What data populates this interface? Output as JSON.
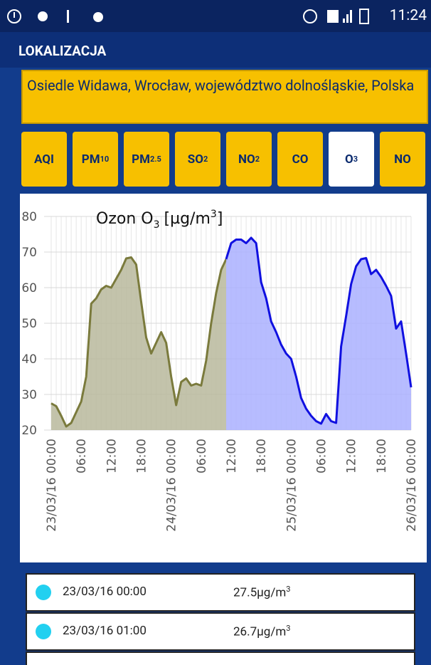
{
  "status_bar": {
    "time": "11:24"
  },
  "header": {
    "title": "LOKALIZACJA"
  },
  "location": "Osiedle Widawa, Wrocław, województwo dolnośląskie, Polska",
  "tabs": [
    {
      "label": "AQI"
    },
    {
      "label": "PM",
      "sub": "10"
    },
    {
      "label": "PM",
      "sub": "2.5"
    },
    {
      "label": "SO",
      "sub": "2"
    },
    {
      "label": "NO",
      "sub": "2"
    },
    {
      "label": "CO"
    },
    {
      "label": "O",
      "sub": "3",
      "selected": true
    },
    {
      "label": "NO"
    }
  ],
  "chart_data": {
    "type": "area",
    "title": "Ozon O",
    "title_sub": "3",
    "title_unit": "[µg/m",
    "title_unit_sup": "3",
    "title_end": "]",
    "categories": [
      "23/03/16 00:00",
      null,
      null,
      null,
      null,
      null,
      "06:00",
      null,
      null,
      null,
      null,
      null,
      "12:00",
      null,
      null,
      null,
      null,
      null,
      "18:00",
      null,
      null,
      null,
      null,
      null,
      "24/03/16 00:00",
      null,
      null,
      null,
      null,
      null,
      "06:00",
      null,
      null,
      null,
      null,
      null,
      "12:00",
      null,
      null,
      null,
      null,
      null,
      "18:00",
      null,
      null,
      null,
      null,
      null,
      "25/03/16 00:00",
      null,
      null,
      null,
      null,
      null,
      "06:00",
      null,
      null,
      null,
      null,
      null,
      "12:00",
      null,
      null,
      null,
      null,
      null,
      "18:00",
      null,
      null,
      null,
      null,
      null,
      "26/03/16 00:00"
    ],
    "series": [
      {
        "color": "#7a7a3c",
        "fill": "#b8b89c",
        "values": [
          27.5,
          26.7,
          24,
          21,
          22,
          25,
          28,
          35,
          55.5,
          57,
          59.5,
          60.5,
          60,
          62.5,
          65,
          68.2,
          68.5,
          66.5,
          56,
          46,
          41.5,
          44.5,
          47.5,
          44.5,
          35,
          27,
          33.5,
          34.5,
          32.5,
          33,
          32.5,
          39.5,
          50,
          58.5,
          65,
          68,
          null,
          null,
          null,
          null,
          null,
          null,
          null,
          null,
          null,
          null,
          null,
          null,
          null,
          null,
          null,
          null,
          null,
          null,
          null,
          null,
          null,
          null,
          null,
          null,
          null,
          null,
          null,
          null,
          null,
          null,
          null,
          null,
          null,
          null,
          null,
          null,
          null
        ]
      },
      {
        "color": "#1010e0",
        "fill": "#aab0ff",
        "values": [
          null,
          null,
          null,
          null,
          null,
          null,
          null,
          null,
          null,
          null,
          null,
          null,
          null,
          null,
          null,
          null,
          null,
          null,
          null,
          null,
          null,
          null,
          null,
          null,
          null,
          null,
          null,
          null,
          null,
          null,
          null,
          null,
          null,
          null,
          null,
          68,
          72.5,
          73.5,
          73.5,
          72.5,
          74,
          72.5,
          61.5,
          57,
          50.5,
          47.5,
          44,
          41.5,
          40,
          35,
          29,
          26,
          24,
          22.5,
          21.8,
          24.5,
          22.5,
          22,
          43.5,
          52,
          61,
          66,
          68,
          68.3,
          63.8,
          65,
          63,
          60.5,
          57.7,
          48.5,
          50.5,
          41.5,
          32
        ]
      }
    ],
    "ylim": [
      20,
      80
    ],
    "yticks": [
      20,
      30,
      40,
      50,
      60,
      70,
      80
    ],
    "grid": true
  },
  "table": {
    "rows": [
      {
        "date": "23/03/16 00:00",
        "value": 27.5,
        "unit": "µg/m",
        "unit_sup": "3"
      },
      {
        "date": "23/03/16 01:00",
        "value": 26.7,
        "unit": "µg/m",
        "unit_sup": "3"
      }
    ]
  }
}
